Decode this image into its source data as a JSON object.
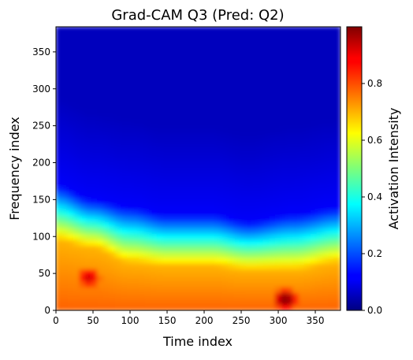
{
  "chart_data": {
    "type": "heatmap",
    "title": "Grad-CAM Q3 (Pred: Q2)",
    "xlabel": "Time index",
    "ylabel": "Frequency index",
    "xlim": [
      0,
      384
    ],
    "ylim": [
      0,
      384
    ],
    "xticks": [
      "0",
      "50",
      "100",
      "150",
      "200",
      "250",
      "300",
      "350"
    ],
    "yticks": [
      "0",
      "50",
      "100",
      "150",
      "200",
      "250",
      "300",
      "350"
    ],
    "colormap": "jet",
    "colorbar": {
      "label": "Activation Intensity",
      "range": [
        0,
        1
      ],
      "ticks": [
        "0.0",
        "0.2",
        "0.4",
        "0.6",
        "0.8"
      ]
    },
    "grid": false,
    "x_samples": [
      0,
      50,
      100,
      150,
      210,
      260,
      320,
      384
    ],
    "activation_band_top_frequency": [
      95,
      85,
      65,
      60,
      60,
      55,
      55,
      65
    ],
    "blue_edge_frequency": [
      170,
      150,
      140,
      130,
      130,
      120,
      130,
      140
    ],
    "peak_activation_regions": [
      {
        "time": 45,
        "frequency": 45,
        "intensity": 0.92
      },
      {
        "time": 310,
        "frequency": 15,
        "intensity": 1.0
      }
    ]
  }
}
